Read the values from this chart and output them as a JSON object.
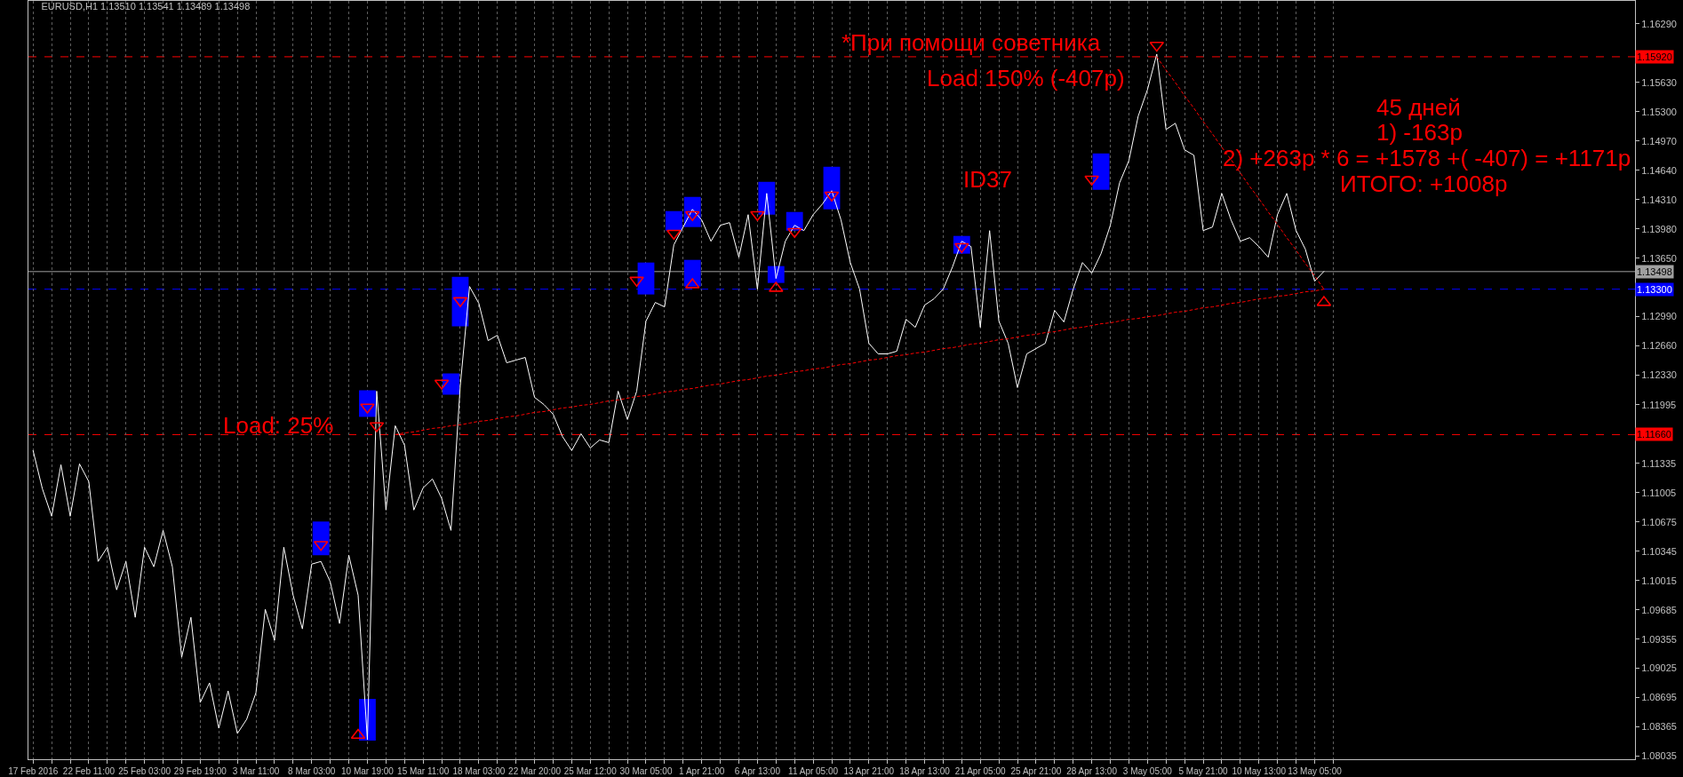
{
  "chart_data": {
    "type": "line",
    "title": "EURUSD,H1 1.13510 1.13541 1.13489 1.13498",
    "categories": [
      "17 Feb 2016",
      null,
      null,
      null,
      null,
      null,
      "22 Feb 11:00",
      null,
      null,
      null,
      null,
      null,
      "25 Feb 03:00",
      null,
      null,
      null,
      null,
      null,
      "29 Feb 19:00",
      null,
      null,
      null,
      null,
      null,
      "3 Mar 11:00",
      null,
      null,
      null,
      null,
      null,
      "8 Mar 03:00",
      null,
      null,
      null,
      null,
      null,
      "10 Mar 19:00",
      null,
      null,
      null,
      null,
      null,
      "15 Mar 11:00",
      null,
      null,
      null,
      null,
      null,
      "18 Mar 03:00",
      null,
      null,
      null,
      null,
      null,
      "22 Mar 20:00",
      null,
      null,
      null,
      null,
      null,
      "25 Mar 12:00",
      null,
      null,
      null,
      null,
      null,
      "30 Mar 05:00",
      null,
      null,
      null,
      null,
      null,
      "1 Apr 21:00",
      null,
      null,
      null,
      null,
      null,
      "6 Apr 13:00",
      null,
      null,
      null,
      null,
      null,
      "11 Apr 05:00",
      null,
      null,
      null,
      null,
      null,
      "13 Apr 21:00",
      null,
      null,
      null,
      null,
      null,
      "18 Apr 13:00",
      null,
      null,
      null,
      null,
      null,
      "21 Apr 05:00",
      null,
      null,
      null,
      null,
      null,
      "25 Apr 21:00",
      null,
      null,
      null,
      null,
      null,
      "28 Apr 13:00",
      null,
      null,
      null,
      null,
      null,
      "3 May 05:00",
      null,
      null,
      null,
      null,
      null,
      "5 May 21:00",
      null,
      null,
      null,
      null,
      null,
      "10 May 13:00",
      null,
      null,
      null,
      null,
      null,
      "13 May 05:00",
      null,
      null,
      null,
      null,
      null,
      null,
      null,
      null,
      null,
      null,
      null,
      null,
      null,
      null,
      null,
      null,
      null,
      null,
      null,
      null,
      null,
      null,
      null,
      null,
      null,
      null,
      null,
      null,
      null,
      null,
      null,
      null,
      null,
      null
    ],
    "ylim": [
      1.08,
      1.1655
    ],
    "yticks": [
      {
        "value": 1.1629,
        "label": "1.16290"
      },
      {
        "value": 1.1563,
        "label": "1.15630"
      },
      {
        "value": 1.153,
        "label": "1.15300"
      },
      {
        "value": 1.1497,
        "label": "1.14970"
      },
      {
        "value": 1.1464,
        "label": "1.14640"
      },
      {
        "value": 1.1431,
        "label": "1.14310"
      },
      {
        "value": 1.1398,
        "label": "1.13980"
      },
      {
        "value": 1.1365,
        "label": "1.13650"
      },
      {
        "value": 1.1299,
        "label": "1.12990"
      },
      {
        "value": 1.1266,
        "label": "1.12660"
      },
      {
        "value": 1.1233,
        "label": "1.12330"
      },
      {
        "value": 1.11995,
        "label": "1.11995"
      },
      {
        "value": 1.11335,
        "label": "1.11335"
      },
      {
        "value": 1.11005,
        "label": "1.11005"
      },
      {
        "value": 1.10675,
        "label": "1.10675"
      },
      {
        "value": 1.10345,
        "label": "1.10345"
      },
      {
        "value": 1.10015,
        "label": "1.10015"
      },
      {
        "value": 1.09685,
        "label": "1.09685"
      },
      {
        "value": 1.09355,
        "label": "1.09355"
      },
      {
        "value": 1.09025,
        "label": "1.09025"
      },
      {
        "value": 1.08695,
        "label": "1.08695"
      },
      {
        "value": 1.08365,
        "label": "1.08365"
      },
      {
        "value": 1.08035,
        "label": "1.08035"
      }
    ],
    "grid": "x",
    "series": [
      {
        "type": "bar",
        "color": "#0000ff",
        "base": [
          null,
          null,
          null,
          null,
          null,
          null,
          null,
          null,
          null,
          null,
          null,
          null,
          null,
          null,
          null,
          null,
          null,
          null,
          null,
          null,
          null,
          null,
          null,
          null,
          null,
          null,
          null,
          null,
          null,
          null,
          null,
          1.103,
          null,
          null,
          null,
          null,
          1.0821,
          null,
          null,
          null,
          null,
          null,
          null,
          null,
          null,
          1.1211,
          1.1288,
          null,
          null,
          null,
          null,
          null,
          null,
          null,
          null,
          null,
          null,
          null,
          null,
          null,
          null,
          null,
          null,
          null,
          null,
          null,
          1.1324,
          null,
          null,
          null,
          null,
          1.1333,
          null,
          null,
          null,
          null,
          null,
          null,
          null,
          null,
          1.1337,
          null,
          null,
          null,
          null,
          null,
          null,
          null,
          null,
          null,
          null,
          null,
          null,
          null,
          null,
          null,
          null,
          null,
          null,
          null,
          1.137,
          null,
          null,
          null,
          null,
          null,
          null,
          null,
          null,
          null,
          null,
          null,
          null,
          null,
          null,
          null,
          null,
          null,
          null,
          null,
          null,
          null,
          null,
          null,
          null,
          null,
          null,
          null,
          null,
          null,
          null,
          null,
          null,
          null,
          null,
          null,
          null,
          null,
          null,
          null,
          null,
          null,
          null,
          null,
          null,
          null,
          null,
          null,
          null,
          null,
          null,
          null,
          null,
          null,
          null,
          null,
          null,
          null,
          null,
          null,
          null,
          null,
          null,
          null,
          null,
          null,
          null,
          null,
          null,
          null,
          null,
          null,
          null
        ],
        "values": [
          null,
          null,
          null,
          null,
          null,
          null,
          null,
          null,
          null,
          null,
          null,
          null,
          null,
          null,
          null,
          null,
          null,
          null,
          null,
          null,
          null,
          null,
          null,
          null,
          null,
          null,
          null,
          null,
          null,
          null,
          null,
          0.0038,
          null,
          null,
          null,
          null,
          0.0047,
          null,
          null,
          null,
          null,
          null,
          null,
          null,
          null,
          0.0024,
          0.0056,
          null,
          null,
          null,
          null,
          null,
          null,
          null,
          null,
          null,
          null,
          null,
          null,
          null,
          null,
          null,
          null,
          null,
          null,
          null,
          0.0036,
          null,
          null,
          null,
          null,
          0.003,
          null,
          null,
          null,
          null,
          null,
          null,
          null,
          null,
          0.0019,
          null,
          null,
          null,
          null,
          null,
          null,
          null,
          null,
          null,
          null,
          null,
          null,
          null,
          null,
          null,
          null,
          null,
          null,
          null,
          0.002,
          null,
          null,
          null,
          null,
          null,
          null,
          null,
          null,
          null,
          null,
          null,
          null,
          null,
          null,
          null,
          null,
          null,
          null,
          null,
          null,
          null,
          null,
          null,
          null,
          null,
          null,
          null,
          null,
          null,
          null,
          null,
          null,
          null,
          null,
          null,
          null,
          null,
          null,
          null,
          null,
          null,
          null,
          null,
          null,
          null,
          null,
          null,
          null,
          null,
          null,
          null,
          null,
          null,
          null,
          null,
          null,
          null,
          null,
          null,
          null,
          null,
          null,
          null,
          null,
          null,
          null,
          null,
          null,
          null,
          null,
          null,
          null
        ]
      },
      {
        "type": "bar",
        "color": "#0000ff",
        "base": [
          null,
          null,
          null,
          null,
          null,
          null,
          null,
          null,
          null,
          null,
          null,
          null,
          null,
          null,
          null,
          null,
          null,
          null,
          null,
          null,
          null,
          null,
          null,
          null,
          null,
          null,
          null,
          null,
          null,
          null,
          null,
          null,
          null,
          null,
          null,
          null,
          1.1186,
          null,
          null,
          null,
          null,
          null,
          null,
          null,
          null,
          null,
          null,
          null,
          null,
          null,
          null,
          null,
          null,
          null,
          null,
          null,
          null,
          null,
          null,
          null,
          null,
          null,
          null,
          null,
          null,
          null,
          null,
          null,
          null,
          1.1396,
          null,
          1.14,
          null,
          null,
          null,
          null,
          null,
          null,
          null,
          1.1414,
          null,
          null,
          1.1396,
          null,
          null,
          null,
          1.142,
          null,
          null,
          null,
          null,
          null,
          null,
          null,
          null,
          null,
          null,
          null,
          null,
          null,
          null,
          null,
          null,
          null,
          null,
          null,
          null,
          null,
          null,
          null,
          null,
          null,
          null,
          null,
          null,
          1.1442,
          null,
          null,
          null,
          null,
          null,
          null,
          null,
          null,
          null,
          null,
          null,
          null,
          null,
          null,
          null,
          null,
          null,
          null,
          null,
          null,
          null,
          null,
          null,
          null,
          null,
          null,
          null,
          null,
          null,
          null,
          null,
          null,
          null,
          null,
          null,
          null,
          null,
          null,
          null,
          null,
          null,
          null,
          null,
          null,
          null,
          null,
          null,
          null,
          null,
          null,
          null,
          null,
          null,
          null,
          null,
          null,
          null
        ],
        "values": [
          null,
          null,
          null,
          null,
          null,
          null,
          null,
          null,
          null,
          null,
          null,
          null,
          null,
          null,
          null,
          null,
          null,
          null,
          null,
          null,
          null,
          null,
          null,
          null,
          null,
          null,
          null,
          null,
          null,
          null,
          null,
          null,
          null,
          null,
          null,
          null,
          0.003,
          null,
          null,
          null,
          null,
          null,
          null,
          null,
          null,
          null,
          null,
          null,
          null,
          null,
          null,
          null,
          null,
          null,
          null,
          null,
          null,
          null,
          null,
          null,
          null,
          null,
          null,
          null,
          null,
          null,
          null,
          null,
          null,
          0.0022,
          null,
          0.0034,
          null,
          null,
          null,
          null,
          null,
          null,
          null,
          0.0037,
          null,
          null,
          0.0021,
          null,
          null,
          null,
          0.0048,
          null,
          null,
          null,
          null,
          null,
          null,
          null,
          null,
          null,
          null,
          null,
          null,
          null,
          null,
          null,
          null,
          null,
          null,
          null,
          null,
          null,
          null,
          null,
          null,
          null,
          null,
          null,
          null,
          0.0041,
          null,
          null,
          null,
          null,
          null,
          null,
          null,
          null,
          null,
          null,
          null,
          null,
          null,
          null,
          null,
          null,
          null,
          null,
          null,
          null,
          null,
          null,
          null,
          null,
          null,
          null,
          null,
          null,
          null,
          null,
          null,
          null,
          null,
          null,
          null,
          null,
          null,
          null,
          null,
          null,
          null,
          null,
          null,
          null,
          null,
          null,
          null,
          null,
          null,
          null,
          null,
          null,
          null,
          null,
          null,
          null,
          null
        ]
      },
      {
        "color": "#ffffff",
        "values": [
          1.1148,
          1.1105,
          1.1074,
          1.1132,
          1.1074,
          1.1133,
          1.1113,
          1.1023,
          1.1039,
          1.0991,
          1.1023,
          1.096,
          1.1039,
          1.1017,
          1.1058,
          1.1017,
          1.0915,
          1.096,
          1.0864,
          1.0886,
          1.0835,
          1.0877,
          1.0829,
          1.0845,
          1.0875,
          1.0969,
          1.0934,
          1.1039,
          1.0985,
          1.0947,
          1.102,
          1.1023,
          1.1,
          1.0953,
          1.103,
          1.0985,
          1.0822,
          1.1215,
          1.1081,
          1.1176,
          1.1154,
          1.1081,
          1.1106,
          1.1116,
          1.1094,
          1.1058,
          1.1221,
          1.1333,
          1.1314,
          1.1272,
          1.1278,
          1.1247,
          1.125,
          1.1253,
          1.1208,
          1.12,
          1.1189,
          1.1164,
          1.1148,
          1.1167,
          1.1151,
          1.116,
          1.1157,
          1.1215,
          1.1183,
          1.1215,
          1.1294,
          1.1315,
          1.131,
          1.138,
          1.14,
          1.142,
          1.1408,
          1.1384,
          1.1402,
          1.1405,
          1.1366,
          1.1414,
          1.133,
          1.1438,
          1.1342,
          1.1384,
          1.1402,
          1.1396,
          1.1414,
          1.1426,
          1.1441,
          1.1408,
          1.136,
          1.133,
          1.1269,
          1.1257,
          1.1257,
          1.126,
          1.1296,
          1.1287,
          1.1312,
          1.1319,
          1.133,
          1.1355,
          1.1384,
          1.1378,
          1.1287,
          1.1396,
          1.1294,
          1.1269,
          1.1219,
          1.1257,
          1.1263,
          1.1269,
          1.1306,
          1.1293,
          1.133,
          1.136,
          1.1348,
          1.137,
          1.1402,
          1.145,
          1.1475,
          1.1525,
          1.1555,
          1.1595,
          1.151,
          1.1517,
          1.1487,
          1.1481,
          1.1396,
          1.14,
          1.1438,
          1.1408,
          1.1384,
          1.1388,
          1.1378,
          1.1366,
          1.1414,
          1.1438,
          1.1396,
          1.1375,
          1.1339,
          1.135,
          null,
          null,
          null,
          null,
          null,
          null,
          null,
          null,
          null,
          null,
          null,
          null,
          null,
          null,
          null,
          null,
          null,
          null,
          null,
          null,
          null,
          null,
          null,
          null,
          null,
          null,
          null,
          null,
          null,
          null,
          null,
          null,
          null
        ]
      },
      {
        "color": "#ff0000",
        "line_style": "dotted",
        "values": [
          null,
          null,
          null,
          null,
          null,
          null,
          null,
          null,
          null,
          null,
          null,
          null,
          null,
          null,
          null,
          null,
          null,
          null,
          null,
          null,
          null,
          null,
          null,
          null,
          null,
          null,
          null,
          null,
          null,
          null,
          null,
          null,
          null,
          null,
          null,
          null,
          null,
          null,
          null,
          1.1166,
          1.1168,
          1.1169,
          1.1171,
          1.1173,
          1.1174,
          1.1176,
          1.1177,
          1.1179,
          1.1181,
          1.1182,
          1.1184,
          1.1186,
          1.1187,
          1.1189,
          1.1191,
          1.1192,
          1.1194,
          1.1196,
          1.1197,
          1.1199,
          1.12,
          1.1202,
          1.1204,
          1.1205,
          1.1207,
          1.1209,
          1.121,
          1.1212,
          1.1214,
          1.1215,
          1.1217,
          1.1218,
          1.122,
          1.1222,
          1.1223,
          1.1225,
          1.1227,
          1.1228,
          1.123,
          1.1232,
          1.1233,
          1.1235,
          1.1237,
          1.1238,
          1.124,
          1.1241,
          1.1243,
          1.1245,
          1.1246,
          1.1248,
          1.125,
          1.1251,
          1.1253,
          1.1255,
          1.1256,
          1.1258,
          1.1259,
          1.1261,
          1.1263,
          1.1264,
          1.1266,
          1.1268,
          1.1269,
          1.1271,
          1.1273,
          1.1274,
          1.1276,
          1.1278,
          1.1279,
          1.1281,
          1.1282,
          1.1284,
          1.1286,
          1.1287,
          1.1289,
          1.1291,
          1.1292,
          1.1294,
          1.1296,
          1.1297,
          1.1299,
          1.13,
          1.1302,
          1.1304,
          1.1305,
          1.1307,
          1.1309,
          1.131,
          1.1312,
          1.1314,
          1.1315,
          1.1317,
          1.1319,
          1.132,
          1.1322,
          1.1323,
          1.1325,
          1.1327,
          1.1328,
          1.133,
          null,
          null,
          null,
          null,
          null,
          null,
          null,
          null,
          null,
          null,
          null,
          null,
          null,
          null,
          null,
          null,
          null,
          null,
          null,
          null,
          null,
          null,
          null,
          null,
          null,
          null,
          null,
          null,
          null,
          null,
          null,
          null,
          null
        ]
      },
      {
        "color": "#ff0000",
        "line_style": "dotted",
        "values": [
          null,
          null,
          null,
          null,
          null,
          null,
          null,
          null,
          null,
          null,
          null,
          null,
          null,
          null,
          null,
          null,
          null,
          null,
          null,
          null,
          null,
          null,
          null,
          null,
          null,
          null,
          null,
          null,
          null,
          null,
          null,
          null,
          null,
          null,
          null,
          null,
          null,
          null,
          null,
          null,
          null,
          null,
          null,
          null,
          null,
          null,
          null,
          null,
          null,
          null,
          null,
          null,
          null,
          null,
          null,
          null,
          null,
          null,
          null,
          null,
          null,
          null,
          null,
          null,
          null,
          null,
          null,
          null,
          null,
          null,
          null,
          null,
          null,
          null,
          null,
          null,
          null,
          null,
          null,
          null,
          null,
          null,
          null,
          null,
          null,
          null,
          null,
          null,
          null,
          null,
          null,
          null,
          null,
          null,
          null,
          null,
          null,
          null,
          null,
          null,
          null,
          null,
          null,
          null,
          null,
          null,
          null,
          null,
          null,
          null,
          null,
          null,
          null,
          null,
          null,
          null,
          null,
          null,
          null,
          null,
          null,
          1.1592,
          1.1577,
          1.1563,
          1.1548,
          1.1534,
          1.1519,
          1.1505,
          1.149,
          1.1476,
          1.1461,
          1.1446,
          1.1432,
          1.1417,
          1.1403,
          1.1388,
          1.1374,
          1.1359,
          1.1345,
          1.133,
          null,
          null,
          null,
          null,
          null,
          null,
          null,
          null,
          null,
          null,
          null,
          null,
          null,
          null,
          null,
          null,
          null,
          null,
          null,
          null,
          null,
          null,
          null,
          null,
          null,
          null,
          null,
          null,
          null,
          null,
          null,
          null,
          null
        ]
      },
      {
        "type": "scatter",
        "color": "#ff0000",
        "marker": "triangle",
        "values": [
          null,
          null,
          null,
          null,
          null,
          null,
          null,
          null,
          null,
          null,
          null,
          null,
          null,
          null,
          null,
          null,
          null,
          null,
          null,
          null,
          null,
          null,
          null,
          null,
          null,
          null,
          null,
          null,
          null,
          null,
          null,
          1.1042,
          null,
          null,
          null,
          null,
          1.1197,
          1.1176,
          null,
          null,
          null,
          null,
          null,
          null,
          1.1224,
          null,
          1.1317,
          null,
          null,
          null,
          null,
          null,
          null,
          null,
          null,
          null,
          null,
          null,
          null,
          null,
          null,
          null,
          null,
          null,
          null,
          1.134,
          null,
          null,
          null,
          1.1393,
          null,
          1.1414,
          null,
          null,
          null,
          null,
          null,
          null,
          1.1414,
          null,
          null,
          null,
          1.1395,
          null,
          null,
          null,
          1.1436,
          null,
          null,
          null,
          null,
          null,
          null,
          null,
          null,
          null,
          null,
          null,
          null,
          null,
          1.1378,
          null,
          null,
          null,
          null,
          null,
          null,
          null,
          null,
          null,
          null,
          null,
          null,
          null,
          1.1454,
          null,
          null,
          null,
          null,
          null,
          null,
          1.1605,
          null,
          null,
          null,
          null,
          null,
          null,
          null,
          null,
          null,
          null,
          null,
          null,
          null,
          null,
          null,
          null,
          null,
          null,
          null,
          null,
          null,
          null,
          null,
          null,
          null,
          null,
          null,
          null,
          null,
          null,
          null,
          null,
          null,
          null,
          null,
          null,
          null,
          null,
          null,
          null,
          null,
          null,
          null,
          null,
          null,
          null,
          null,
          null,
          null,
          null,
          null
        ]
      },
      {
        "type": "scatter",
        "color": "#ff0000",
        "marker": "triangle",
        "values": [
          null,
          null,
          null,
          null,
          null,
          null,
          null,
          null,
          null,
          null,
          null,
          null,
          null,
          null,
          null,
          null,
          null,
          null,
          null,
          null,
          null,
          null,
          null,
          null,
          null,
          null,
          null,
          null,
          null,
          null,
          null,
          null,
          null,
          null,
          null,
          1.0827,
          null,
          null,
          null,
          null,
          null,
          null,
          null,
          null,
          null,
          null,
          null,
          null,
          null,
          null,
          null,
          null,
          null,
          null,
          null,
          null,
          null,
          null,
          null,
          null,
          null,
          null,
          null,
          null,
          null,
          null,
          null,
          null,
          null,
          null,
          null,
          1.1335,
          null,
          null,
          null,
          null,
          null,
          null,
          null,
          null,
          1.1331,
          null,
          null,
          null,
          null,
          null,
          null,
          null,
          null,
          null,
          null,
          null,
          null,
          null,
          null,
          null,
          null,
          null,
          null,
          null,
          null,
          null,
          null,
          null,
          null,
          null,
          null,
          null,
          null,
          null,
          null,
          null,
          null,
          null,
          null,
          null,
          null,
          null,
          null,
          null,
          null,
          null,
          null,
          null,
          null,
          null,
          null,
          null,
          null,
          null,
          null,
          null,
          null,
          null,
          null,
          null,
          null,
          null,
          null,
          1.1315,
          null,
          null,
          null,
          null,
          null,
          null,
          null,
          null,
          null,
          null,
          null,
          null,
          null,
          null,
          null,
          null,
          null,
          null,
          null,
          null,
          null,
          null,
          null,
          null,
          null,
          null,
          null,
          null,
          null,
          null,
          null,
          null,
          null
        ]
      }
    ],
    "ref_lines": [
      {
        "axis": "y",
        "value": 1.1592,
        "label": "1.15920",
        "color": "#ff0000",
        "line_style": "dashed"
      },
      {
        "axis": "y",
        "value": 1.13498,
        "label": "1.13498",
        "color": "#a0a0a0",
        "line_style": "solid"
      },
      {
        "axis": "y",
        "value": 1.133,
        "label": "1.13300",
        "color": "#0000ff",
        "line_style": "dashed"
      },
      {
        "axis": "y",
        "value": 1.1166,
        "label": "1.11660",
        "color": "#ff0000",
        "line_style": "dashed"
      }
    ],
    "annotations": [
      "*При помощи советника",
      "Load 150% (-407p)",
      "45 дней",
      "1) -163р",
      "2) +263р * 6 = +1578 +( -407) = +1171р",
      "ИТОГО: +1008р",
      "ID37",
      "Load: 25%"
    ]
  }
}
